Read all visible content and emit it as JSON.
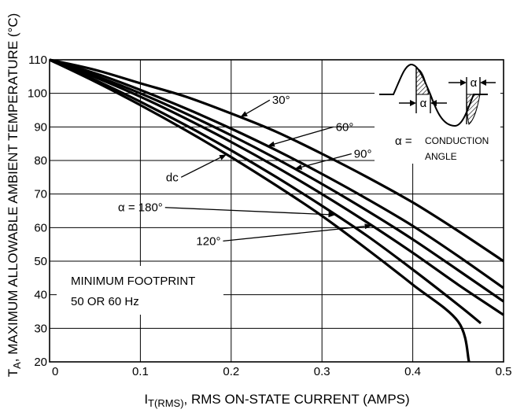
{
  "chart_data": {
    "type": "line",
    "title": "",
    "xlabel_main": "I",
    "xlabel_sub": "T(RMS)",
    "xlabel_rest": ", RMS ON-STATE CURRENT (AMPS)",
    "ylabel_main": "T",
    "ylabel_sub": "A",
    "ylabel_rest": ", MAXIMUM ALLOWABLE AMBIENT TEMPERATURE (°C)",
    "xlim": [
      0,
      0.5
    ],
    "ylim": [
      20,
      110
    ],
    "x_ticks": [
      0,
      0.1,
      0.2,
      0.3,
      0.4,
      0.5
    ],
    "x_tick_labels": [
      "0",
      "0.1",
      "0.2",
      "0.3",
      "0.4",
      "0.5"
    ],
    "y_ticks": [
      20,
      30,
      40,
      50,
      60,
      70,
      80,
      90,
      100,
      110
    ],
    "y_tick_labels": [
      "20",
      "30",
      "40",
      "50",
      "60",
      "70",
      "80",
      "90",
      "100",
      "110"
    ],
    "grid": true,
    "series": [
      {
        "name": "30°",
        "x": [
          0,
          0.05,
          0.1,
          0.15,
          0.2,
          0.25,
          0.3,
          0.35,
          0.4,
          0.45,
          0.5
        ],
        "y": [
          110,
          107,
          103,
          99,
          94,
          88.5,
          82,
          75,
          67.5,
          59,
          50
        ]
      },
      {
        "name": "60°",
        "x": [
          0,
          0.05,
          0.1,
          0.15,
          0.2,
          0.25,
          0.3,
          0.35,
          0.4,
          0.45,
          0.5
        ],
        "y": [
          110,
          106,
          101,
          95.5,
          89.5,
          83,
          76,
          68.5,
          60.5,
          51.5,
          42
        ]
      },
      {
        "name": "90°",
        "x": [
          0,
          0.05,
          0.1,
          0.15,
          0.2,
          0.25,
          0.3,
          0.35,
          0.4,
          0.45,
          0.5
        ],
        "y": [
          110,
          105.3,
          100,
          94,
          87.5,
          80.5,
          73,
          65,
          56.5,
          47.3,
          38
        ]
      },
      {
        "name": "120°",
        "x": [
          0,
          0.05,
          0.1,
          0.15,
          0.2,
          0.25,
          0.3,
          0.35,
          0.4,
          0.45,
          0.5
        ],
        "y": [
          110,
          104.8,
          99,
          92.5,
          85.5,
          78,
          70,
          61.5,
          52.5,
          43,
          34
        ]
      },
      {
        "name": "α = 180°",
        "x": [
          0,
          0.05,
          0.1,
          0.15,
          0.2,
          0.25,
          0.3,
          0.35,
          0.4,
          0.45,
          0.475
        ],
        "y": [
          110,
          104,
          97.5,
          90.5,
          83,
          75,
          66.5,
          57.5,
          47.5,
          37,
          31.5
        ]
      },
      {
        "name": "dc",
        "x": [
          0,
          0.05,
          0.1,
          0.15,
          0.2,
          0.25,
          0.3,
          0.35,
          0.4,
          0.45,
          0.462
        ],
        "y": [
          110,
          103.5,
          96.5,
          89,
          81,
          72.5,
          63.5,
          53.5,
          43,
          32,
          20
        ]
      }
    ],
    "annotations": [
      {
        "text": "30°",
        "series": "30°",
        "at_x": 0.21,
        "label_x": 0.255,
        "label_y": 98
      },
      {
        "text": "60°",
        "series": "60°",
        "at_x": 0.24,
        "label_x": 0.325,
        "label_y": 90
      },
      {
        "text": "90°",
        "series": "90°",
        "at_x": 0.27,
        "label_x": 0.345,
        "label_y": 82
      },
      {
        "text": "dc",
        "series": "dc",
        "at_x": 0.195,
        "label_x": 0.135,
        "label_y": 75
      },
      {
        "text": "α = 180°",
        "series": "α = 180°",
        "at_x": 0.315,
        "label_x": 0.1,
        "label_y": 66
      },
      {
        "text": "120°",
        "series": "120°",
        "at_x": 0.355,
        "label_x": 0.175,
        "label_y": 56
      }
    ],
    "note_lines": [
      "MINIMUM FOOTPRINT",
      "50 OR 60 Hz"
    ],
    "inset": {
      "alpha_symbol": "α",
      "alpha_eq": "α =",
      "line1": "CONDUCTION",
      "line2": "ANGLE"
    }
  }
}
